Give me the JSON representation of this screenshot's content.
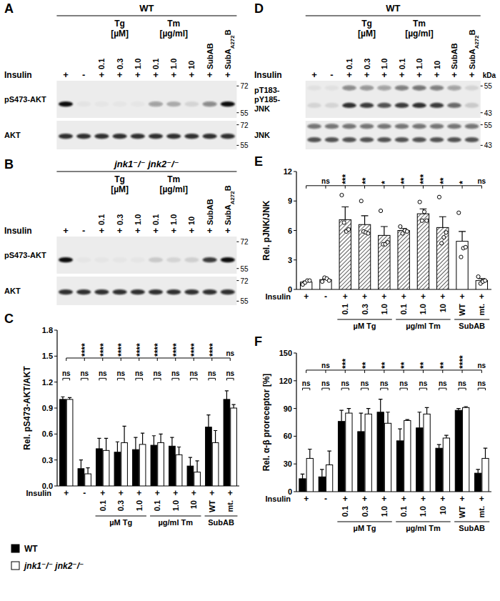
{
  "chart_data": [
    {
      "type": "bar",
      "title": "C",
      "ylabel": "Rel. pS473-AKT/AKT",
      "ylim": [
        0,
        1.8
      ],
      "yticks": [
        {
          "value": 0,
          "label": "0.0"
        },
        0.3,
        0.6,
        0.9,
        1.2,
        1.5,
        1.8
      ],
      "categories": [
        null,
        null,
        "0.1",
        "0.3",
        "1.0",
        "0.1",
        "1.0",
        "10",
        "WT",
        "mt."
      ],
      "insulin_label": "Insulin",
      "insulin": [
        "+",
        "-",
        "+",
        "+",
        "+",
        "+",
        "+",
        "+",
        "+",
        "+"
      ],
      "groups": [
        {
          "label": "µM Tg",
          "start": 2,
          "end": 4
        },
        {
          "label": "µg/ml Tm",
          "start": 5,
          "end": 7
        },
        {
          "label": "SubAB",
          "start": 8,
          "end": 9
        }
      ],
      "series": [
        {
          "name": "WT",
          "color": "#000000",
          "values": [
            1.0,
            0.2,
            0.43,
            0.39,
            0.42,
            0.47,
            0.46,
            0.23,
            0.68,
            1.0
          ],
          "errors": [
            0.03,
            0.1,
            0.12,
            0.12,
            0.14,
            0.11,
            0.1,
            0.1,
            0.14,
            0.1
          ]
        },
        {
          "name": "jnk1⁻/⁻ jnk2⁻/⁻",
          "color": "#ffffff",
          "values": [
            1.0,
            0.14,
            0.41,
            0.5,
            0.48,
            0.5,
            0.36,
            0.16,
            0.5,
            0.9
          ],
          "errors": [
            0.02,
            0.07,
            0.14,
            0.19,
            0.13,
            0.1,
            0.09,
            0.13,
            0.14,
            0.04
          ]
        }
      ],
      "significance": {
        "vs_first": [
          null,
          "****",
          "****",
          "****",
          "****",
          "****",
          "****",
          "****",
          "****",
          "ns"
        ],
        "between": [
          "ns",
          "ns",
          "ns",
          "ns",
          "ns",
          "ns",
          "ns",
          "ns",
          "ns",
          "ns"
        ]
      },
      "legend": "bottom"
    },
    {
      "type": "bar",
      "title": "E",
      "ylabel": "Rel. pJNK/JNK",
      "ylim": [
        0,
        12
      ],
      "yticks": [
        0,
        3,
        6,
        9,
        12
      ],
      "categories": [
        null,
        null,
        "0.1",
        "0.3",
        "1.0",
        "0.1",
        "1.0",
        "10",
        "WT",
        "mt."
      ],
      "insulin_label": "Insulin",
      "insulin": [
        "+",
        "-",
        "+",
        "+",
        "+",
        "+",
        "+",
        "+",
        "+",
        "+"
      ],
      "groups": [
        {
          "label": "µM Tg",
          "start": 2,
          "end": 4
        },
        {
          "label": "µg/ml Tm",
          "start": 5,
          "end": 7
        },
        {
          "label": "SubAB",
          "start": 8,
          "end": 9
        }
      ],
      "series": [
        {
          "colors": [
            "#ffffff",
            "#ffffff",
            "#333333",
            "#333333",
            "#333333",
            "#333333",
            "#333333",
            "#333333",
            "#ffffff",
            "#ffffff"
          ],
          "marker": "circle",
          "values": [
            0.75,
            1.0,
            7.1,
            6.6,
            5.5,
            6.0,
            7.7,
            6.3,
            4.9,
            0.9
          ],
          "errors": [
            0.1,
            0.1,
            1.3,
            0.9,
            0.9,
            0.2,
            0.5,
            1.1,
            1.0,
            0.2
          ],
          "points": [
            [
              0.5,
              0.7,
              0.9,
              0.9
            ],
            [
              0.8,
              1.2,
              1.1,
              0.9
            ],
            [
              9.6,
              6.8,
              5.9,
              6.1
            ],
            [
              9.0,
              5.9,
              5.8,
              5.7
            ],
            [
              8.0,
              4.6,
              4.6,
              4.8
            ],
            [
              6.4,
              5.7,
              6.0,
              5.9
            ],
            [
              8.9,
              7.0,
              7.9,
              7.0
            ],
            [
              9.4,
              4.7,
              5.3,
              5.8
            ],
            [
              7.8,
              3.3,
              4.2,
              4.3
            ],
            [
              1.3,
              0.6,
              0.8,
              0.9
            ]
          ]
        }
      ],
      "significance": {
        "vs_first": [
          null,
          "ns",
          "***",
          "**",
          "*",
          "**",
          "***",
          "**",
          "*",
          "ns"
        ]
      }
    },
    {
      "type": "bar",
      "title": "F",
      "ylabel": "Rel. α-β proreceptor [%]",
      "ylim": [
        0,
        150
      ],
      "yticks": [
        0,
        30,
        60,
        90,
        120,
        150
      ],
      "categories": [
        null,
        null,
        "0.1",
        "0.3",
        "1.0",
        "0.1",
        "1.0",
        "10",
        "WT",
        "mt."
      ],
      "insulin_label": "Insulin",
      "insulin": [
        "+",
        "-",
        "+",
        "+",
        "+",
        "+",
        "+",
        "+",
        "+",
        "+"
      ],
      "groups": [
        {
          "label": "µM Tg",
          "start": 2,
          "end": 4
        },
        {
          "label": "µg/ml Tm",
          "start": 5,
          "end": 7
        },
        {
          "label": "SubAB",
          "start": 8,
          "end": 9
        }
      ],
      "series": [
        {
          "color": "#000000",
          "values": [
            14,
            16,
            76,
            65,
            86,
            55,
            69,
            47,
            88,
            20
          ],
          "errors": [
            5,
            8,
            12,
            20,
            14,
            13,
            17,
            4,
            2,
            4
          ]
        },
        {
          "color": "#ffffff",
          "values": [
            36,
            29,
            85,
            84,
            74,
            77,
            84,
            58,
            91,
            36
          ],
          "errors": [
            10,
            15,
            5,
            6,
            12,
            1,
            7,
            3,
            1,
            11
          ]
        }
      ],
      "significance": {
        "vs_first": [
          null,
          "ns",
          "***",
          "**",
          "**",
          "**",
          "**",
          "**",
          "****",
          "ns"
        ],
        "between": [
          "ns",
          "ns",
          "ns",
          "ns",
          "ns",
          "ns",
          "ns",
          "ns",
          "ns",
          "ns"
        ]
      }
    }
  ],
  "blots": [
    {
      "title": "A",
      "header": "WT",
      "treatments": [
        {
          "label": "Tg",
          "unit": "[µM]",
          "start": 2,
          "end": 4
        },
        {
          "label": "Tm",
          "unit": "[µg/ml]",
          "start": 5,
          "end": 7
        }
      ],
      "lanes": [
        null,
        null,
        "0.1",
        "0.3",
        "1.0",
        "0.1",
        "1.0",
        "10",
        "SubAB",
        [
          "SubA",
          {
            "sub": "A272"
          },
          "B"
        ]
      ],
      "insulin_label": "Insulin",
      "insulin": [
        "+",
        "-",
        "+",
        "+",
        "+",
        "+",
        "+",
        "+",
        "+",
        "+"
      ],
      "rows": [
        {
          "label": [
            "pS473-AKT"
          ],
          "markers": [
            72,
            55
          ],
          "bands": [
            {
              "kda": 60,
              "intensity": [
                1.0,
                0.04,
                0.03,
                0.03,
                0.03,
                0.35,
                0.28,
                0.1,
                0.45,
                1.0
              ]
            }
          ]
        },
        {
          "label": [
            "AKT"
          ],
          "markers": [
            72,
            55
          ],
          "bands": [
            {
              "kda": 62,
              "intensity": [
                0.85,
                0.85,
                0.85,
                0.85,
                0.85,
                0.85,
                0.85,
                0.85,
                0.85,
                0.85
              ]
            }
          ]
        }
      ]
    },
    {
      "title": "B",
      "header": "jnk1⁻/⁻ jnk2⁻/⁻",
      "treatments": [
        {
          "label": "Tg",
          "unit": "[µM]",
          "start": 2,
          "end": 4
        },
        {
          "label": "Tm",
          "unit": "[µg/ml]",
          "start": 5,
          "end": 7
        }
      ],
      "lanes": [
        null,
        null,
        "0.1",
        "0.3",
        "1.0",
        "0.1",
        "1.0",
        "10",
        "SubAB",
        [
          "SubA",
          {
            "sub": "A272"
          },
          "B"
        ]
      ],
      "insulin_label": "Insulin",
      "insulin": [
        "+",
        "-",
        "+",
        "+",
        "+",
        "+",
        "+",
        "+",
        "+",
        "+"
      ],
      "rows": [
        {
          "label": [
            "pS473-AKT"
          ],
          "markers": [
            72,
            55
          ],
          "bands": [
            {
              "kda": 60,
              "intensity": [
                1.0,
                0.03,
                0.03,
                0.03,
                0.03,
                0.15,
                0.1,
                0.12,
                0.8,
                1.0
              ]
            }
          ]
        },
        {
          "label": [
            "AKT"
          ],
          "markers": [
            72,
            55
          ],
          "bands": [
            {
              "kda": 62,
              "intensity": [
                0.85,
                0.85,
                0.85,
                0.85,
                0.85,
                0.85,
                0.85,
                0.85,
                0.85,
                0.85
              ]
            }
          ]
        }
      ]
    },
    {
      "title": "D",
      "header": "WT",
      "treatments": [
        {
          "label": "Tg",
          "unit": "[µM]",
          "start": 2,
          "end": 4
        },
        {
          "label": "Tm",
          "unit": "[µg/ml]",
          "start": 5,
          "end": 7
        }
      ],
      "lanes": [
        null,
        null,
        "0.1",
        "0.3",
        "1.0",
        "0.1",
        "1.0",
        "10",
        "SubAB",
        [
          "SubA",
          {
            "sub": "A272"
          },
          "B"
        ]
      ],
      "insulin_label": "Insulin",
      "insulin": [
        "+",
        "-",
        "+",
        "+",
        "+",
        "+",
        "+",
        "+",
        "+",
        "+"
      ],
      "kda_label": "kDa",
      "rows": [
        {
          "label": [
            "pT183-",
            "pY185-",
            "JNK"
          ],
          "markers": [
            55,
            43
          ],
          "bands": [
            {
              "kda": 54,
              "intensity": [
                0.05,
                0.05,
                0.45,
                0.4,
                0.35,
                0.5,
                0.55,
                0.5,
                0.35,
                0.1
              ]
            },
            {
              "kda": 46,
              "intensity": [
                0.1,
                0.1,
                0.85,
                0.8,
                0.7,
                0.8,
                0.85,
                0.8,
                0.6,
                0.15
              ]
            }
          ]
        },
        {
          "label": [
            "JNK"
          ],
          "markers": [
            55,
            43
          ],
          "bands": [
            {
              "kda": 54,
              "intensity": [
                0.55,
                0.55,
                0.55,
                0.55,
                0.55,
                0.55,
                0.55,
                0.55,
                0.55,
                0.55
              ]
            },
            {
              "kda": 46,
              "intensity": [
                0.7,
                0.7,
                0.7,
                0.7,
                0.7,
                0.7,
                0.7,
                0.7,
                0.7,
                0.7
              ]
            }
          ]
        }
      ]
    }
  ]
}
